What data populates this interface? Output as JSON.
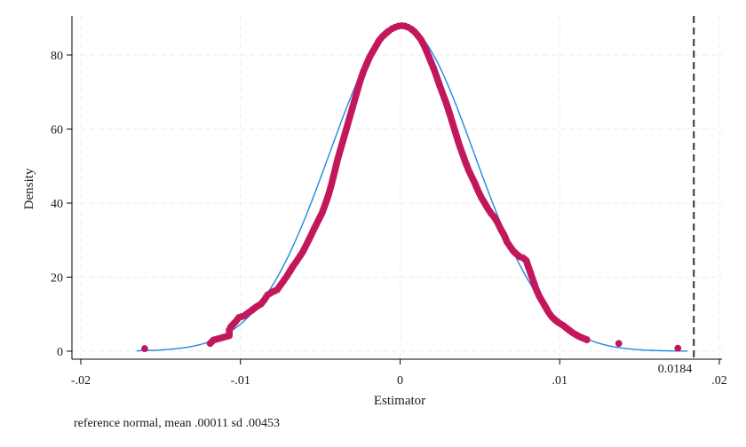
{
  "chart_data": {
    "type": "scatter",
    "xlabel": "Estimator",
    "ylabel": "Density",
    "xlim": [
      -0.02,
      0.02
    ],
    "ylim": [
      0,
      90
    ],
    "x_ticks": [
      -0.02,
      -0.01,
      0,
      0.01,
      0.02
    ],
    "x_tick_labels": [
      "-.02",
      "-.01",
      "0",
      ".01",
      ".02"
    ],
    "y_ticks": [
      0,
      20,
      40,
      60,
      80
    ],
    "y_tick_labels": [
      "0",
      "20",
      "40",
      "60",
      "80"
    ],
    "grid": true,
    "note": "reference normal, mean .00011 sd .00453",
    "reference_normal": {
      "mean": 0.00011,
      "sd": 0.00453,
      "color": "#1e88e5"
    },
    "reference_line": {
      "x": 0.0184,
      "label": "0.0184",
      "style": "dashed",
      "color": "#333333"
    },
    "marker_color": "#c2185b",
    "points": [
      [
        -0.016,
        0.7
      ],
      [
        -0.0119,
        2.1
      ],
      [
        -0.0117,
        3.0
      ],
      [
        -0.0107,
        4.2
      ],
      [
        -0.0107,
        5.8
      ],
      [
        -0.0106,
        6.6
      ],
      [
        -0.0103,
        8.0
      ],
      [
        -0.0101,
        9.1
      ],
      [
        -0.0098,
        9.5
      ],
      [
        -0.0093,
        11.0
      ],
      [
        -0.009,
        12.0
      ],
      [
        -0.0087,
        12.8
      ],
      [
        -0.0085,
        13.9
      ],
      [
        -0.0083,
        15.2
      ],
      [
        -0.008,
        16.0
      ],
      [
        -0.0077,
        16.6
      ],
      [
        -0.0075,
        17.8
      ],
      [
        -0.0073,
        19.0
      ],
      [
        -0.0071,
        20.2
      ],
      [
        -0.0069,
        21.6
      ],
      [
        -0.0067,
        23.0
      ],
      [
        -0.0065,
        24.2
      ],
      [
        -0.0063,
        25.5
      ],
      [
        -0.0061,
        26.8
      ],
      [
        -0.0059,
        28.5
      ],
      [
        -0.0057,
        30.2
      ],
      [
        -0.0055,
        32.0
      ],
      [
        -0.0053,
        33.8
      ],
      [
        -0.0051,
        35.5
      ],
      [
        -0.0049,
        37.2
      ],
      [
        -0.0047,
        39.5
      ],
      [
        -0.0045,
        42.0
      ],
      [
        -0.0043,
        45.0
      ],
      [
        -0.0041,
        48.5
      ],
      [
        -0.0039,
        52.0
      ],
      [
        -0.0037,
        55.0
      ],
      [
        -0.0035,
        58.0
      ],
      [
        -0.0033,
        61.0
      ],
      [
        -0.0031,
        64.0
      ],
      [
        -0.0029,
        67.0
      ],
      [
        -0.0027,
        70.0
      ],
      [
        -0.0025,
        73.0
      ],
      [
        -0.0023,
        75.5
      ],
      [
        -0.0021,
        77.5
      ],
      [
        -0.0019,
        79.5
      ],
      [
        -0.0017,
        81.0
      ],
      [
        -0.0015,
        82.5
      ],
      [
        -0.0013,
        84.0
      ],
      [
        -0.0011,
        85.0
      ],
      [
        -0.0009,
        85.8
      ],
      [
        -0.0007,
        86.5
      ],
      [
        -0.0005,
        87.1
      ],
      [
        -0.0003,
        87.5
      ],
      [
        -0.0001,
        87.8
      ],
      [
        0.0001,
        87.9
      ],
      [
        0.0003,
        87.8
      ],
      [
        0.0005,
        87.5
      ],
      [
        0.0007,
        87.0
      ],
      [
        0.0009,
        86.3
      ],
      [
        0.0011,
        85.3
      ],
      [
        0.0013,
        84.2
      ],
      [
        0.0015,
        82.6
      ],
      [
        0.0017,
        80.6
      ],
      [
        0.0019,
        78.5
      ],
      [
        0.0021,
        76.4
      ],
      [
        0.0023,
        74.0
      ],
      [
        0.0025,
        71.5
      ],
      [
        0.0027,
        69.2
      ],
      [
        0.0029,
        66.9
      ],
      [
        0.0031,
        64.2
      ],
      [
        0.0033,
        61.4
      ],
      [
        0.0035,
        58.6
      ],
      [
        0.0037,
        55.8
      ],
      [
        0.0039,
        53.4
      ],
      [
        0.0041,
        51.0
      ],
      [
        0.0043,
        48.8
      ],
      [
        0.0045,
        47.0
      ],
      [
        0.0047,
        45.2
      ],
      [
        0.0049,
        43.2
      ],
      [
        0.0051,
        41.4
      ],
      [
        0.0053,
        40.0
      ],
      [
        0.0055,
        38.5
      ],
      [
        0.0057,
        37.2
      ],
      [
        0.0059,
        36.2
      ],
      [
        0.0061,
        34.8
      ],
      [
        0.0063,
        33.0
      ],
      [
        0.0065,
        31.5
      ],
      [
        0.0067,
        29.5
      ],
      [
        0.0069,
        28.2
      ],
      [
        0.0071,
        27.0
      ],
      [
        0.0073,
        26.2
      ],
      [
        0.0075,
        25.5
      ],
      [
        0.0077,
        25.2
      ],
      [
        0.0079,
        24.5
      ],
      [
        0.0081,
        22.0
      ],
      [
        0.0083,
        19.5
      ],
      [
        0.0085,
        17.0
      ],
      [
        0.0087,
        15.0
      ],
      [
        0.0089,
        13.5
      ],
      [
        0.0091,
        12.0
      ],
      [
        0.0093,
        10.5
      ],
      [
        0.0095,
        9.3
      ],
      [
        0.0097,
        8.5
      ],
      [
        0.0099,
        7.8
      ],
      [
        0.0102,
        7.0
      ],
      [
        0.0105,
        6.0
      ],
      [
        0.0108,
        5.0
      ],
      [
        0.0112,
        4.0
      ],
      [
        0.0117,
        3.1
      ],
      [
        0.0137,
        2.1
      ],
      [
        0.0174,
        0.8
      ]
    ]
  }
}
